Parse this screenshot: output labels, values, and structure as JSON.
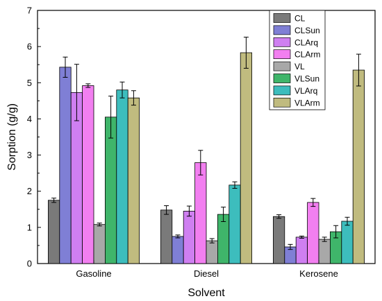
{
  "chart_data": {
    "type": "bar",
    "title": "",
    "xlabel": "Solvent",
    "ylabel": "Sorption (g/g)",
    "ylim": [
      0,
      7
    ],
    "yticks": [
      "0",
      "1",
      "2",
      "3",
      "4",
      "5",
      "6",
      "7"
    ],
    "grid": false,
    "legend_position": "top-right",
    "categories": [
      "Gasoline",
      "Diesel",
      "Kerosene"
    ],
    "series": [
      {
        "name": "CL",
        "color": "#7a7a7a",
        "values": [
          1.75,
          1.48,
          1.3
        ],
        "errors": [
          0.06,
          0.12,
          0.05
        ]
      },
      {
        "name": "CLSun",
        "color": "#7f7fd5",
        "values": [
          5.43,
          0.75,
          0.46
        ],
        "errors": [
          0.28,
          0.04,
          0.07
        ]
      },
      {
        "name": "CLArq",
        "color": "#cf7ff1",
        "values": [
          4.73,
          1.45,
          0.73
        ],
        "errors": [
          0.78,
          0.14,
          0.03
        ]
      },
      {
        "name": "CLArm",
        "color": "#f27ff0",
        "values": [
          4.92,
          2.79,
          1.69
        ],
        "errors": [
          0.05,
          0.34,
          0.11
        ]
      },
      {
        "name": "VL",
        "color": "#a8a8a8",
        "values": [
          1.08,
          0.63,
          0.67
        ],
        "errors": [
          0.04,
          0.06,
          0.06
        ]
      },
      {
        "name": "VLSun",
        "color": "#3fb56a",
        "values": [
          4.05,
          1.36,
          0.88
        ],
        "errors": [
          0.58,
          0.2,
          0.17
        ]
      },
      {
        "name": "VLArq",
        "color": "#3dbdbd",
        "values": [
          4.8,
          2.17,
          1.17
        ],
        "errors": [
          0.22,
          0.09,
          0.11
        ]
      },
      {
        "name": "VLArm",
        "color": "#c0bb7f",
        "values": [
          4.58,
          5.83,
          5.35
        ],
        "errors": [
          0.2,
          0.43,
          0.44
        ]
      }
    ]
  }
}
